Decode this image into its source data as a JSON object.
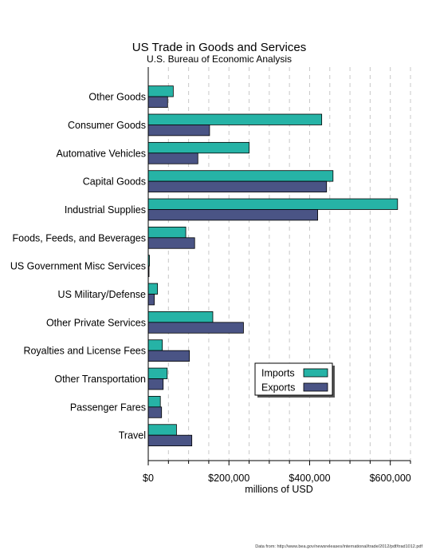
{
  "chart_data": {
    "type": "bar",
    "orientation": "horizontal",
    "title": "US Trade in Goods and Services",
    "subtitle": "U.S. Bureau of Economic Analysis",
    "xlabel": "millions of USD",
    "ylabel": "",
    "xlim": [
      0,
      650000
    ],
    "x_ticks": [
      0,
      200000,
      400000,
      600000
    ],
    "x_tick_labels": [
      "$0",
      "$200,000",
      "$400,000",
      "$600,000"
    ],
    "grid": "vertical dashed",
    "legend_position": "bottom-right",
    "categories": [
      "Other Goods",
      "Consumer Goods",
      "Automative Vehicles",
      "Capital Goods",
      "Industrial Supplies",
      "Foods, Feeds, and Beverages",
      "US Government Misc Services",
      "US Military/Defense",
      "Other Private Services",
      "Royalties and License Fees",
      "Other Transportation",
      "Passenger Fares",
      "Travel"
    ],
    "series": [
      {
        "name": "Imports",
        "color": "#26b3a6",
        "values": [
          62000,
          430000,
          250000,
          458000,
          618000,
          93000,
          3000,
          23000,
          160000,
          35000,
          47000,
          30000,
          70000
        ]
      },
      {
        "name": "Exports",
        "color": "#4a5485",
        "values": [
          48000,
          152000,
          123000,
          442000,
          420000,
          115000,
          1000,
          15000,
          236000,
          102000,
          37000,
          33000,
          108000
        ]
      }
    ],
    "source_note": "Data from: http://www.bea.gov/newsreleases/international/trade/2012/pdf/trad1012.pdf"
  }
}
